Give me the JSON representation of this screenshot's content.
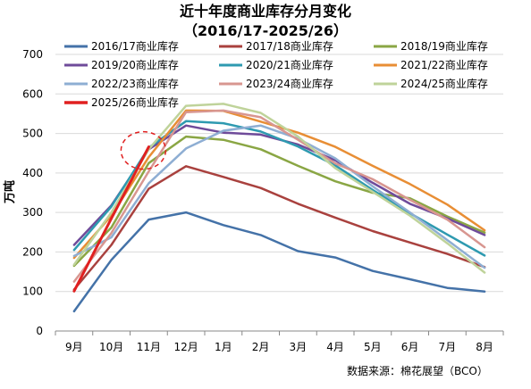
{
  "chart_data": {
    "type": "line",
    "title": "近十年度商业库存分月变化",
    "subtitle": "（2016/17-2025/26）",
    "ylabel": "万吨",
    "xlabel": "",
    "source": "数据来源：棉花展望（BCO）",
    "categories": [
      "9月",
      "10月",
      "11月",
      "12月",
      "1月",
      "2月",
      "3月",
      "4月",
      "5月",
      "6月",
      "7月",
      "8月"
    ],
    "ylim": [
      0,
      700
    ],
    "yticks": [
      0,
      100,
      200,
      300,
      400,
      500,
      600,
      700
    ],
    "grid": true,
    "legend_position": "top",
    "series": [
      {
        "name": "2016/17商业库存",
        "color": "#4472a8",
        "values": [
          50,
          180,
          282,
          300,
          268,
          243,
          202,
          186,
          152,
          131,
          109,
          100
        ]
      },
      {
        "name": "2017/18商业库存",
        "color": "#a9413e",
        "values": [
          105,
          218,
          360,
          417,
          390,
          362,
          322,
          287,
          253,
          224,
          195,
          162
        ]
      },
      {
        "name": "2018/19商业库存",
        "color": "#8aa644",
        "values": [
          165,
          262,
          425,
          492,
          484,
          460,
          418,
          379,
          350,
          336,
          290,
          249
        ]
      },
      {
        "name": "2019/20商业库存",
        "color": "#6f4b9a",
        "values": [
          218,
          318,
          460,
          520,
          502,
          497,
          472,
          432,
          375,
          322,
          285,
          243
        ]
      },
      {
        "name": "2020/21商业库存",
        "color": "#2e9ab0",
        "values": [
          205,
          315,
          464,
          531,
          526,
          505,
          467,
          419,
          357,
          298,
          244,
          191
        ]
      },
      {
        "name": "2021/22商业库存",
        "color": "#e88e35",
        "values": [
          185,
          292,
          440,
          558,
          557,
          530,
          502,
          466,
          418,
          372,
          320,
          255
        ]
      },
      {
        "name": "2022/23商业库存",
        "color": "#8eaed3",
        "values": [
          190,
          237,
          374,
          462,
          507,
          520,
          487,
          437,
          366,
          300,
          230,
          160
        ]
      },
      {
        "name": "2023/24商业库存",
        "color": "#d89690",
        "values": [
          125,
          248,
          404,
          554,
          558,
          541,
          484,
          424,
          384,
          332,
          282,
          212
        ]
      },
      {
        "name": "2024/25商业库存",
        "color": "#bfd39a",
        "values": [
          168,
          300,
          460,
          570,
          575,
          552,
          492,
          412,
          352,
          292,
          222,
          148
        ]
      },
      {
        "name": "2025/26商业库存",
        "color": "#e02020",
        "values": [
          101,
          285,
          466,
          null,
          null,
          null,
          null,
          null,
          null,
          null,
          null,
          null
        ]
      }
    ],
    "annotation": {
      "type": "dashed-circle",
      "color": "#e02020",
      "target": "11月"
    }
  }
}
